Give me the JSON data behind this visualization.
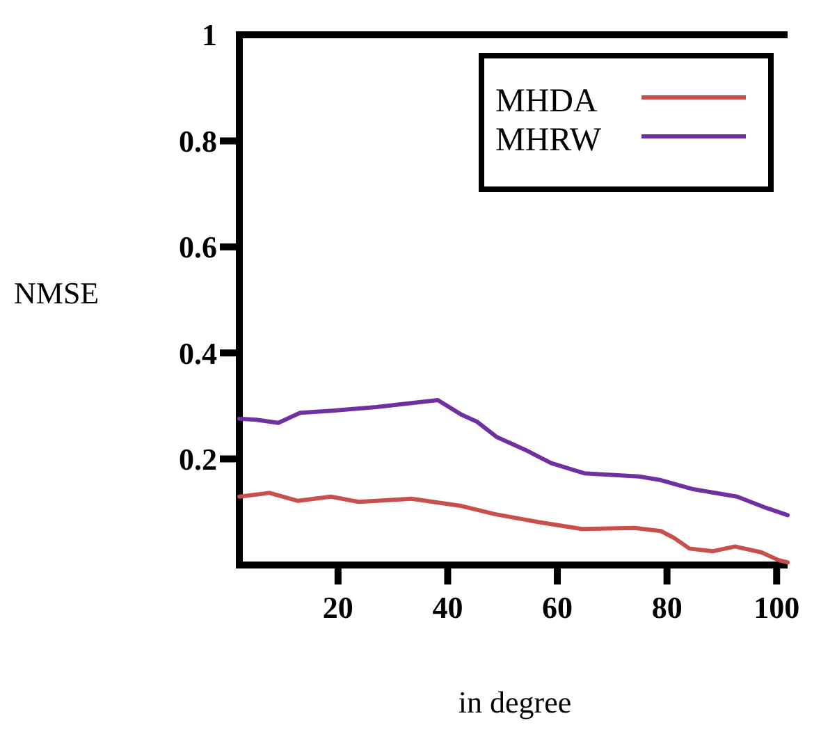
{
  "chart_data": {
    "type": "line",
    "xlabel": "in degree",
    "ylabel": "NMSE",
    "xlim": [
      2,
      102
    ],
    "xticks": [
      20,
      40,
      60,
      80,
      100
    ],
    "ylim": [
      0,
      1
    ],
    "yticks": [
      {
        "value": 0.2,
        "label": "0.2"
      },
      {
        "value": 0.4,
        "label": "0.4"
      },
      {
        "value": 0.6,
        "label": "0.6"
      },
      {
        "value": 0.8,
        "label": "0.8"
      },
      1
    ],
    "grid": false,
    "legend": "top right",
    "marker": "none",
    "line_style": "solid",
    "series": [
      {
        "name": "MHDA",
        "color": "#c8504a",
        "x": [
          2,
          7.5,
          12.7,
          18.7,
          23.8,
          33.4,
          42.2,
          48.6,
          56.5,
          64.5,
          74.1,
          78.9,
          81.3,
          84.1,
          88.4,
          92.4,
          97.2,
          100.4,
          102
        ],
        "values": [
          0.129,
          0.136,
          0.121,
          0.129,
          0.119,
          0.125,
          0.112,
          0.096,
          0.081,
          0.068,
          0.07,
          0.064,
          0.051,
          0.031,
          0.026,
          0.035,
          0.024,
          0.009,
          0.005
        ]
      },
      {
        "name": "MHRW",
        "color": "#7030a0",
        "x": [
          2,
          5.1,
          9.1,
          13.1,
          19,
          27,
          38.2,
          42.6,
          45.4,
          49,
          54.2,
          58.9,
          64.9,
          74.9,
          78.9,
          84.8,
          92.8,
          98,
          102
        ],
        "values": [
          0.276,
          0.274,
          0.268,
          0.287,
          0.291,
          0.298,
          0.311,
          0.283,
          0.27,
          0.241,
          0.217,
          0.192,
          0.173,
          0.167,
          0.16,
          0.143,
          0.129,
          0.108,
          0.094
        ]
      }
    ]
  }
}
